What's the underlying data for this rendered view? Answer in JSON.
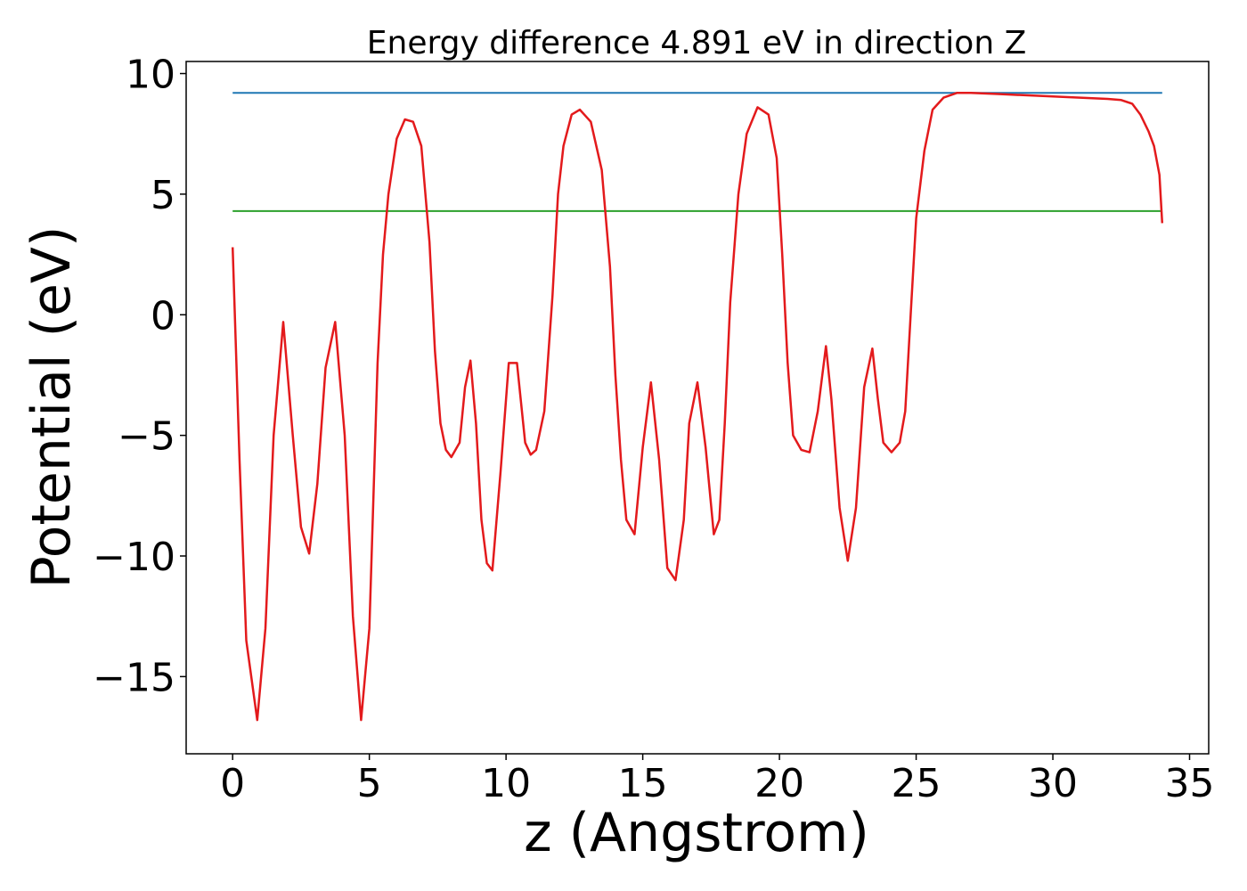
{
  "chart_data": {
    "type": "line",
    "title": "Energy difference 4.891 eV in direction Z",
    "xlabel": "z (Angstrom)",
    "ylabel": "Potential (eV)",
    "xlim": [
      -1.7,
      35.7
    ],
    "ylim": [
      -18.2,
      10.5
    ],
    "xticks": [
      0,
      5,
      10,
      15,
      20,
      25,
      30,
      35
    ],
    "yticks": [
      10,
      5,
      0,
      -5,
      -10,
      -15
    ],
    "ytick_labels": [
      "10",
      "5",
      "0",
      "−5",
      "−10",
      "−15"
    ],
    "grid": false,
    "legend": false,
    "colors": {
      "potential": "#e31a1c",
      "vacuum_level": "#1f77b4",
      "fermi_level": "#2ca02c"
    },
    "series": [
      {
        "key": "vacuum_level",
        "x": [
          0,
          34
        ],
        "y": [
          9.2,
          9.2
        ]
      },
      {
        "key": "fermi_level",
        "x": [
          0,
          34
        ],
        "y": [
          4.3,
          4.3
        ]
      },
      {
        "key": "potential",
        "x": [
          0.0,
          0.25,
          0.5,
          0.9,
          1.2,
          1.5,
          1.85,
          2.2,
          2.5,
          2.8,
          3.1,
          3.4,
          3.75,
          4.1,
          4.4,
          4.7,
          5.0,
          5.3,
          5.5,
          5.7,
          6.0,
          6.3,
          6.6,
          6.9,
          7.2,
          7.4,
          7.6,
          7.8,
          8.0,
          8.3,
          8.5,
          8.7,
          8.9,
          9.1,
          9.3,
          9.5,
          9.8,
          10.1,
          10.4,
          10.7,
          10.9,
          11.1,
          11.4,
          11.7,
          11.9,
          12.1,
          12.4,
          12.7,
          13.1,
          13.5,
          13.8,
          14.0,
          14.2,
          14.4,
          14.7,
          15.0,
          15.3,
          15.6,
          15.9,
          16.2,
          16.5,
          16.7,
          17.0,
          17.3,
          17.6,
          17.8,
          18.0,
          18.2,
          18.5,
          18.8,
          19.2,
          19.6,
          19.9,
          20.1,
          20.3,
          20.5,
          20.8,
          21.1,
          21.4,
          21.7,
          21.9,
          22.2,
          22.5,
          22.8,
          23.1,
          23.4,
          23.6,
          23.8,
          24.1,
          24.4,
          24.6,
          24.8,
          25.0,
          25.3,
          25.6,
          26.0,
          26.5,
          27.0,
          28.0,
          29.0,
          30.0,
          31.0,
          32.0,
          32.5,
          32.9,
          33.2,
          33.5,
          33.7,
          33.9,
          34.0
        ],
        "y": [
          2.8,
          -6.0,
          -13.5,
          -16.8,
          -13.0,
          -5.0,
          -0.3,
          -5.0,
          -8.8,
          -9.9,
          -7.0,
          -2.2,
          -0.3,
          -5.0,
          -12.5,
          -16.8,
          -13.0,
          -2.0,
          2.5,
          5.0,
          7.3,
          8.1,
          8.0,
          7.0,
          3.0,
          -1.5,
          -4.5,
          -5.6,
          -5.9,
          -5.3,
          -3.0,
          -1.9,
          -4.5,
          -8.5,
          -10.3,
          -10.6,
          -6.5,
          -2.0,
          -2.0,
          -5.3,
          -5.8,
          -5.6,
          -4.0,
          0.8,
          5.0,
          7.0,
          8.3,
          8.5,
          8.0,
          6.0,
          2.0,
          -2.5,
          -6.0,
          -8.5,
          -9.1,
          -5.5,
          -2.8,
          -6.0,
          -10.5,
          -11.0,
          -8.5,
          -4.5,
          -2.8,
          -5.5,
          -9.1,
          -8.5,
          -4.5,
          0.5,
          5.0,
          7.5,
          8.6,
          8.3,
          6.5,
          2.5,
          -2.0,
          -5.0,
          -5.6,
          -5.7,
          -4.0,
          -1.3,
          -3.5,
          -8.0,
          -10.2,
          -8.0,
          -3.0,
          -1.4,
          -3.5,
          -5.3,
          -5.7,
          -5.3,
          -4.0,
          0.0,
          4.0,
          6.8,
          8.5,
          9.0,
          9.2,
          9.2,
          9.15,
          9.1,
          9.05,
          9.0,
          8.95,
          8.9,
          8.75,
          8.3,
          7.6,
          7.0,
          5.8,
          3.8
        ]
      }
    ]
  }
}
